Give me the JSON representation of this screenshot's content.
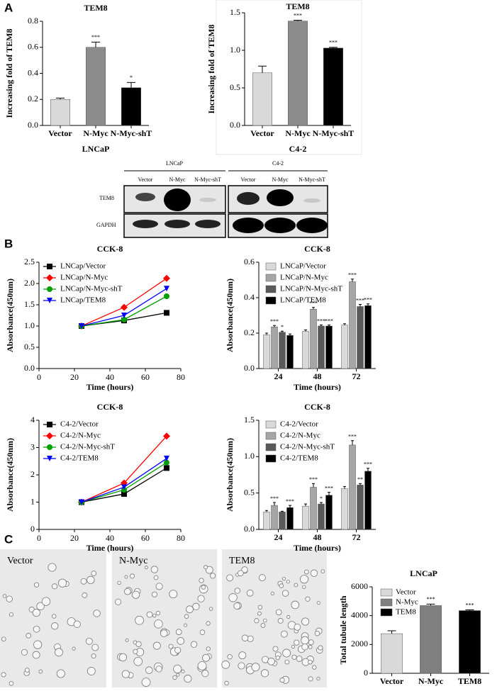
{
  "panels": [
    "A",
    "B",
    "C"
  ],
  "blot": {
    "cell_lines": [
      "LNCaP",
      "C4-2"
    ],
    "lanes": [
      "Vector",
      "N-Myc",
      "N-Myc-shT",
      "Vector",
      "N-Myc",
      "N-Myc-shT"
    ],
    "rows": [
      "TEM8",
      "GAPDH"
    ]
  },
  "images": {
    "labels": [
      "Vector",
      "N-Myc",
      "TEM8"
    ]
  },
  "chart_data": [
    {
      "type": "bar",
      "title": "TEM8",
      "y_label": "Increasing fold of TEM8",
      "x_label": "LNCaP",
      "categories": [
        "Vector",
        "N-Myc",
        "N-Myc-shT"
      ],
      "values": [
        0.2,
        0.6,
        0.29
      ],
      "errors": [
        0.01,
        0.04,
        0.04
      ],
      "annotations": [
        null,
        "***",
        "*"
      ],
      "colors": [
        "#d9d9d9",
        "#8c8c8c",
        "#000000"
      ],
      "ylim": [
        0,
        0.8
      ],
      "yticks": [
        {
          "value": 0,
          "label": "0.0"
        },
        0.2,
        0.4,
        0.6,
        0.8
      ]
    },
    {
      "type": "bar",
      "title": "TEM8",
      "y_label": "Increasing fold of TEM8",
      "x_label": "C4-2",
      "categories": [
        "Vector",
        "N-Myc",
        "N-Myc-shT"
      ],
      "values": [
        0.7,
        1.39,
        1.03
      ],
      "errors": [
        0.09,
        0.01,
        0.01
      ],
      "annotations": [
        null,
        "***",
        "***"
      ],
      "colors": [
        "#d9d9d9",
        "#8c8c8c",
        "#000000"
      ],
      "ylim": [
        0,
        1.5
      ],
      "yticks": [
        {
          "value": 0,
          "label": "0.0"
        },
        0.5,
        {
          "value": 1,
          "label": "1.0"
        },
        1.5
      ]
    },
    {
      "type": "line",
      "title": "CCK-8",
      "y_label": "Absorbance(450nm)",
      "x_label": "Time (hours)",
      "x": [
        24,
        48,
        72
      ],
      "xlim": [
        0,
        80
      ],
      "xticks": [
        0,
        20,
        40,
        60,
        80
      ],
      "ylim": [
        0,
        2.5
      ],
      "yticks": [
        {
          "value": 0,
          "label": "0.0"
        },
        0.5,
        {
          "value": 1,
          "label": "1.0"
        },
        1.5,
        {
          "value": 2,
          "label": "2.0"
        },
        2.5
      ],
      "series": [
        {
          "name": "LNCap/Vector",
          "color": "#000000",
          "marker": "square",
          "values": [
            1.0,
            1.13,
            1.31
          ]
        },
        {
          "name": "LNCap/N-Myc",
          "color": "#ff0000",
          "marker": "diamond",
          "values": [
            1.0,
            1.44,
            2.12
          ]
        },
        {
          "name": "LNCap/N-Myc-shT",
          "color": "#00a000",
          "marker": "circle",
          "values": [
            1.0,
            1.15,
            1.7
          ]
        },
        {
          "name": "LNCap/TEM8",
          "color": "#0000ff",
          "marker": "triangle",
          "values": [
            1.0,
            1.25,
            1.88
          ]
        }
      ]
    },
    {
      "type": "bar",
      "title": "CCK-8",
      "y_label": "Absorbance(450nm)",
      "x_label": "Time (hours)",
      "categories": [
        "24",
        "48",
        "72"
      ],
      "ylim": [
        0,
        0.6
      ],
      "yticks": [
        {
          "value": 0,
          "label": "0.0"
        },
        0.2,
        0.4,
        0.6
      ],
      "series": [
        {
          "name": "LNCaP/Vector",
          "color": "#d9d9d9",
          "values": [
            0.19,
            0.21,
            0.245
          ],
          "errors": [
            0.01,
            0.008,
            0.008
          ],
          "annotations": [
            null,
            null,
            null
          ]
        },
        {
          "name": "LNCaP/N-Myc",
          "color": "#a6a6a6",
          "values": [
            0.235,
            0.335,
            0.49
          ],
          "errors": [
            0.008,
            0.01,
            0.015
          ],
          "annotations": [
            "***",
            "***",
            "***"
          ]
        },
        {
          "name": "LNCaP/N-Myc-shT",
          "color": "#595959",
          "values": [
            0.205,
            0.24,
            0.35
          ],
          "errors": [
            0.006,
            0.006,
            0.012
          ],
          "annotations": [
            "*",
            "***",
            "***"
          ]
        },
        {
          "name": "LNCaP/TEM8",
          "color": "#000000",
          "values": [
            0.187,
            0.24,
            0.355
          ],
          "errors": [
            0.008,
            0.006,
            0.01
          ],
          "annotations": [
            null,
            "***",
            "***"
          ]
        }
      ]
    },
    {
      "type": "line",
      "title": "CCK-8",
      "y_label": "Absorbance(450nm)",
      "x_label": "Time (hours)",
      "x": [
        24,
        48,
        72
      ],
      "xlim": [
        0,
        80
      ],
      "xticks": [
        0,
        20,
        40,
        60,
        80
      ],
      "ylim": [
        0,
        4
      ],
      "yticks": [
        0,
        1,
        2,
        3,
        4
      ],
      "series": [
        {
          "name": "C4-2/Vector",
          "color": "#000000",
          "marker": "square",
          "values": [
            1.0,
            1.3,
            2.25
          ]
        },
        {
          "name": "C4-2/N-Myc",
          "color": "#ff0000",
          "marker": "diamond",
          "values": [
            1.0,
            1.7,
            3.42
          ]
        },
        {
          "name": "C4-2/N-Myc-shT",
          "color": "#00a000",
          "marker": "circle",
          "values": [
            1.0,
            1.45,
            2.45
          ]
        },
        {
          "name": "C4-2/TEM8",
          "color": "#0000ff",
          "marker": "triangle",
          "values": [
            1.0,
            1.55,
            2.6
          ]
        }
      ]
    },
    {
      "type": "bar",
      "title": "CCK-8",
      "y_label": "Absorbance(450nm)",
      "x_label": "Time (hours)",
      "categories": [
        "24",
        "48",
        "72"
      ],
      "ylim": [
        0,
        1.5
      ],
      "yticks": [
        {
          "value": 0,
          "label": "0.0"
        },
        0.5,
        {
          "value": 1,
          "label": "1.0"
        },
        1.5
      ],
      "series": [
        {
          "name": "C4-2/Vector",
          "color": "#d9d9d9",
          "values": [
            0.24,
            0.32,
            0.56
          ],
          "errors": [
            0.02,
            0.03,
            0.03
          ],
          "annotations": [
            null,
            null,
            null
          ]
        },
        {
          "name": "C4-2/N-Myc",
          "color": "#a6a6a6",
          "values": [
            0.33,
            0.58,
            1.16
          ],
          "errors": [
            0.04,
            0.05,
            0.06
          ],
          "annotations": [
            "***",
            "***",
            "***"
          ]
        },
        {
          "name": "C4-2/N-Myc-shT",
          "color": "#595959",
          "values": [
            0.24,
            0.35,
            0.61
          ],
          "errors": [
            0.01,
            0.02,
            0.02
          ],
          "annotations": [
            null,
            "*",
            "**"
          ]
        },
        {
          "name": "C4-2/TEM8",
          "color": "#000000",
          "values": [
            0.3,
            0.47,
            0.8
          ],
          "errors": [
            0.03,
            0.04,
            0.04
          ],
          "annotations": [
            "***",
            "***",
            "***"
          ]
        }
      ]
    },
    {
      "type": "bar",
      "title": "LNCaP",
      "y_label": "Total tubule length",
      "legend": true,
      "categories": [
        "Vector",
        "N-Myc",
        "TEM8"
      ],
      "values": [
        2750,
        4700,
        4350
      ],
      "errors": [
        200,
        100,
        50
      ],
      "annotations": [
        null,
        "***",
        "***"
      ],
      "colors": [
        "#d9d9d9",
        "#808080",
        "#000000"
      ],
      "ylim": [
        0,
        6000
      ],
      "yticks": [
        0,
        2000,
        4000,
        6000
      ]
    }
  ]
}
